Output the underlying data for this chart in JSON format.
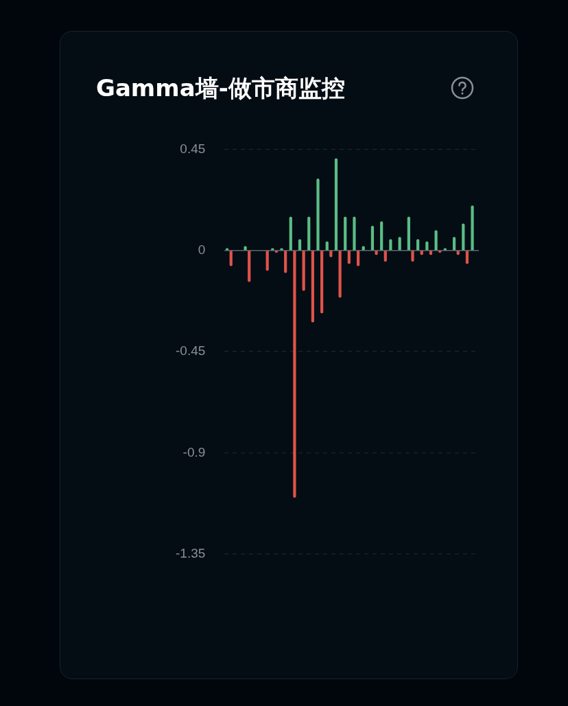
{
  "chart_data": {
    "type": "bar",
    "title": "Gamma墙-做市商监控",
    "categories": [
      null,
      null,
      null,
      null,
      null,
      null,
      null,
      null,
      null,
      null,
      null,
      null,
      null,
      null,
      null,
      null,
      null,
      null,
      null,
      null,
      null,
      null,
      null,
      null,
      null,
      null,
      null,
      null
    ],
    "series": [
      {
        "color": "#5bbd85",
        "values": [
          0.01,
          null,
          0.02,
          null,
          null,
          0.01,
          0.01,
          0.15,
          0.05,
          0.15,
          0.32,
          0.04,
          0.41,
          0.15,
          0.15,
          0.02,
          0.11,
          0.13,
          0.05,
          0.06,
          0.15,
          0.05,
          0.04,
          0.09,
          0.01,
          0.06,
          0.12,
          0.2
        ]
      },
      {
        "color": "#e0534a",
        "values": [
          -0.07,
          null,
          -0.14,
          null,
          -0.09,
          -0.01,
          -0.1,
          -1.1,
          -0.18,
          -0.32,
          -0.28,
          -0.03,
          -0.21,
          -0.06,
          -0.07,
          null,
          -0.02,
          -0.05,
          null,
          null,
          -0.05,
          -0.02,
          -0.02,
          -0.01,
          null,
          -0.02,
          -0.06,
          null
        ]
      }
    ],
    "ref_lines": [
      {
        "axis": "y",
        "value": 0,
        "color": "#5d6670"
      }
    ],
    "ylim": [
      -1.35,
      0.45
    ],
    "yticks": [
      -1.35,
      -0.9,
      -0.45,
      0,
      0.45
    ],
    "grid": "y",
    "legend": false,
    "tick_labels": "y"
  }
}
